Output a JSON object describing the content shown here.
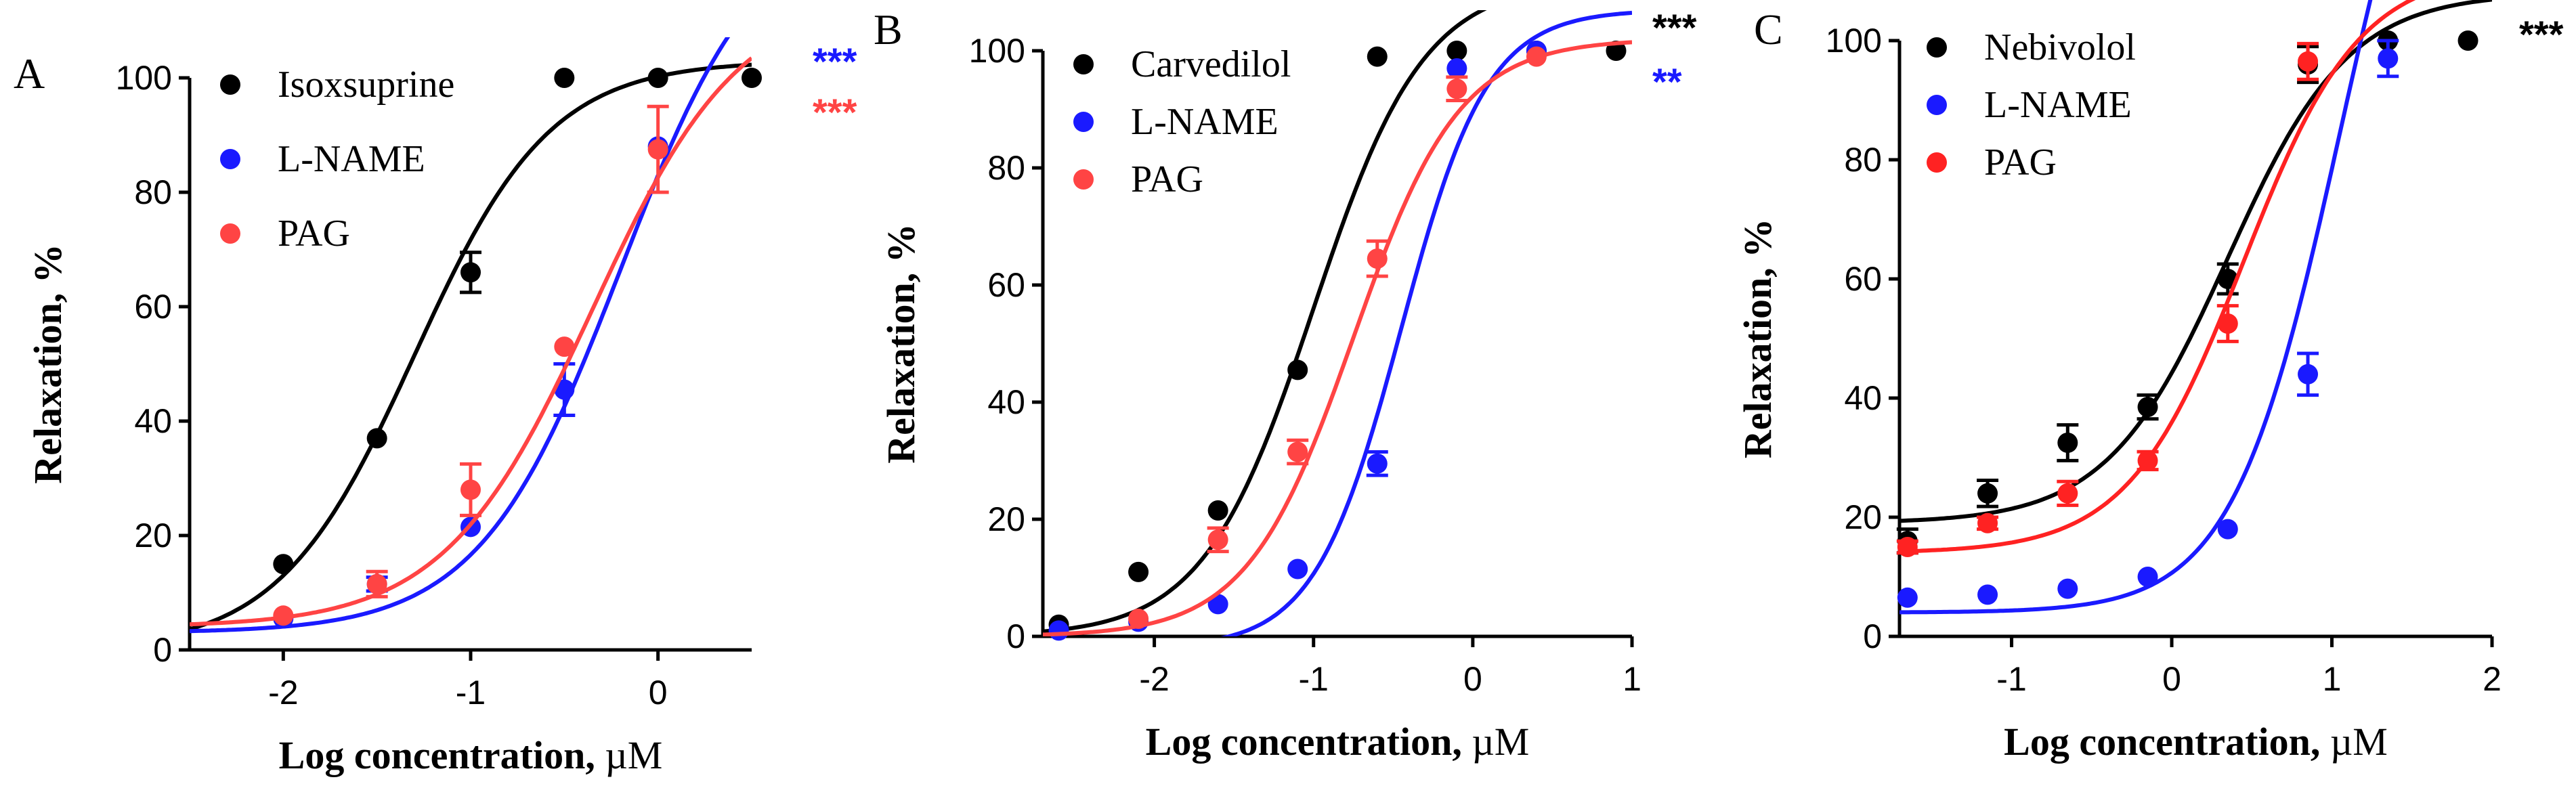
{
  "chart_data": [
    {
      "type": "scatter",
      "panel_label": "A",
      "xlabel_prefix": "Log concentration, ",
      "xlabel_unit": "µM",
      "ylabel": "Relaxation, %",
      "xlim": [
        -2.5,
        0.5
      ],
      "ylim": [
        0,
        100
      ],
      "xticks": [
        -2,
        -1,
        0
      ],
      "xtick_labels": [
        "-2",
        "-1",
        "0"
      ],
      "yticks": [
        0,
        20,
        40,
        60,
        80,
        100
      ],
      "ytick_labels": [
        "0",
        "20",
        "40",
        "60",
        "80",
        "100"
      ],
      "legend_position": "top-left",
      "series": [
        {
          "name": "Isoxsuprine",
          "color": "#000000",
          "x": [
            -2.0,
            -1.5,
            -1.0,
            -0.5,
            0.0,
            0.5
          ],
          "y": [
            15,
            37,
            66,
            100,
            100,
            100
          ],
          "err": [
            0,
            0,
            3.5,
            0,
            0,
            0
          ],
          "fit": {
            "bottom": 0,
            "top": 103,
            "logec50": -1.3,
            "hill": 1.2
          },
          "significance": ""
        },
        {
          "name": "L-NAME",
          "color": "#1a1aff",
          "x": [
            -2.0,
            -1.5,
            -1.0,
            -0.5,
            0.0
          ],
          "y": [
            5.5,
            11.5,
            21.5,
            45.5,
            88
          ],
          "err": [
            0,
            1.2,
            0,
            4.5,
            0
          ],
          "fit": {
            "bottom": 3,
            "top": 130,
            "logec50": -0.2,
            "hill": 1.15
          },
          "significance": "***"
        },
        {
          "name": "PAG",
          "color": "#ff4444",
          "x": [
            -2.0,
            -1.5,
            -1.0,
            -0.5,
            0.0
          ],
          "y": [
            6,
            11.5,
            28,
            53,
            87.5
          ],
          "err": [
            0,
            2.2,
            4.5,
            0,
            7.5
          ],
          "fit": {
            "bottom": 4,
            "top": 115,
            "logec50": -0.35,
            "hill": 1.1
          },
          "significance": "***"
        }
      ]
    },
    {
      "type": "scatter",
      "panel_label": "B",
      "xlabel_prefix": "Log concentration, ",
      "xlabel_unit": "µM",
      "ylabel": "Relaxation, %",
      "xlim": [
        -2.7,
        1.0
      ],
      "ylim": [
        0,
        100
      ],
      "xticks": [
        -2,
        -1,
        0,
        1
      ],
      "xtick_labels": [
        "-2",
        "-1",
        "0",
        "1"
      ],
      "yticks": [
        0,
        20,
        40,
        60,
        80,
        100
      ],
      "ytick_labels": [
        "0",
        "20",
        "40",
        "60",
        "80",
        "100"
      ],
      "legend_position": "top-left",
      "series": [
        {
          "name": "Carvedilol",
          "color": "#000000",
          "x": [
            -2.6,
            -2.1,
            -1.6,
            -1.1,
            -0.6,
            -0.1,
            0.4,
            0.9
          ],
          "y": [
            2,
            11,
            21.5,
            45.5,
            99,
            100,
            100,
            100
          ],
          "err": [
            0,
            0,
            0,
            0,
            0,
            0,
            0,
            0
          ],
          "fit": {
            "bottom": 0,
            "top": 112,
            "logec50": -1.0,
            "hill": 1.25
          },
          "significance": "***"
        },
        {
          "name": "L-NAME",
          "color": "#1a1aff",
          "x": [
            -2.6,
            -2.1,
            -1.6,
            -1.1,
            -0.6,
            -0.1,
            0.4
          ],
          "y": [
            1,
            2.5,
            5.5,
            11.5,
            29.5,
            97,
            100
          ],
          "err": [
            0,
            0,
            0,
            0,
            2,
            0,
            0
          ],
          "fit": {
            "bottom": -2,
            "top": 107,
            "logec50": -0.45,
            "hill": 1.6
          },
          "significance": "**"
        },
        {
          "name": "PAG",
          "color": "#ff4444",
          "x": [
            -2.1,
            -1.6,
            -1.1,
            -0.6,
            -0.1,
            0.4
          ],
          "y": [
            3,
            16.5,
            31.5,
            64.5,
            93.5,
            99
          ],
          "err": [
            0,
            2,
            2,
            3,
            2,
            0
          ],
          "fit": {
            "bottom": 0,
            "top": 102,
            "logec50": -0.75,
            "hill": 1.3
          },
          "significance": ""
        }
      ]
    },
    {
      "type": "scatter",
      "panel_label": "C",
      "xlabel_prefix": "Log concentration, ",
      "xlabel_unit": "µM",
      "ylabel": "Relaxation, %",
      "xlim": [
        -1.7,
        2.0
      ],
      "ylim": [
        0,
        100
      ],
      "xticks": [
        -1,
        0,
        1,
        2
      ],
      "xtick_labels": [
        "-1",
        "0",
        "1",
        "2"
      ],
      "yticks": [
        0,
        20,
        40,
        60,
        80,
        100
      ],
      "ytick_labels": [
        "0",
        "20",
        "40",
        "60",
        "80",
        "100"
      ],
      "legend_position": "top-left",
      "series": [
        {
          "name": "Nebivolol",
          "color": "#000000",
          "x": [
            -1.65,
            -1.15,
            -0.65,
            -0.15,
            0.35,
            0.85,
            1.35,
            1.85
          ],
          "y": [
            16,
            24,
            32.5,
            38.5,
            60,
            96,
            100,
            100
          ],
          "err": [
            2,
            2.2,
            3,
            2,
            2.5,
            3,
            0,
            0
          ],
          "fit": {
            "bottom": 19,
            "top": 108,
            "logec50": 0.35,
            "hill": 1.15
          },
          "significance": "***"
        },
        {
          "name": "L-NAME",
          "color": "#1a1aff",
          "x": [
            -1.65,
            -1.15,
            -0.65,
            -0.15,
            0.35,
            0.85,
            1.35
          ],
          "y": [
            6.5,
            7,
            8,
            10,
            18,
            44,
            97
          ],
          "err": [
            0,
            0,
            0,
            0,
            0,
            3.5,
            3
          ],
          "fit": {
            "bottom": 4,
            "top": 165,
            "logec50": 1.05,
            "hill": 1.3
          },
          "significance": ""
        },
        {
          "name": "PAG",
          "color": "#ff2222",
          "x": [
            -1.65,
            -1.15,
            -0.65,
            -0.15,
            0.35,
            0.85
          ],
          "y": [
            15,
            19,
            24,
            29.5,
            52.5,
            96.5
          ],
          "err": [
            1,
            1,
            2,
            1.5,
            3,
            3
          ],
          "fit": {
            "bottom": 14,
            "top": 112,
            "logec50": 0.45,
            "hill": 1.2
          },
          "significance": ""
        }
      ]
    }
  ]
}
